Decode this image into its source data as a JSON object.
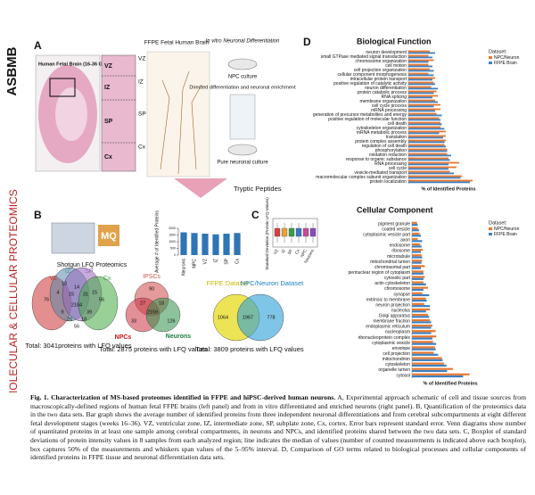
{
  "sidebar": {
    "logo": "ASBMB",
    "journal": "MOLECULAR & CELLULAR PROTEOMICS"
  },
  "panel_a": {
    "label": "A",
    "brain": "Human Fetal Brain (16-36 GW)",
    "zones": [
      "VZ",
      "IZ",
      "SP",
      "Cx"
    ],
    "ffpe": "FFPE Fetal Human Brain",
    "zones_right": [
      "VZ",
      "IZ",
      "SP",
      "Cx"
    ],
    "in_vitro": "In vitro Neuronal Differentiation",
    "npc": "NPC culture",
    "directed": "Directed differentiation and neuronal enrichment",
    "pure": "Pure neuronal culture",
    "peptides": "Tryptic Peptides"
  },
  "panel_b": {
    "label": "B",
    "logo": "MQ",
    "software": "Shotgun LFQ Proteomics",
    "venns": [
      {
        "sets": [
          "VZ",
          "IZ",
          "SP",
          "Cx"
        ],
        "numbers": [
          "76",
          "13",
          "14",
          "56",
          "4",
          "15",
          "31",
          "15",
          "2184",
          "9",
          "39",
          "26",
          "18",
          "56"
        ],
        "total": "Total: 3041proteins with LFQ values"
      },
      {
        "sets": [
          "IPSCs",
          "NPCs",
          "Neurons"
        ],
        "numbers": [
          "90",
          "27",
          "18",
          "33",
          "2159",
          "126"
        ],
        "total": "Total: 2875 proteins with LFQ values"
      },
      {
        "sets": [
          "FFPE Dataset",
          "NPC/Neuron Dataset"
        ],
        "numbers": [
          "1064",
          "1967",
          "778"
        ],
        "total": "Total: 3809 proteins with LFQ values"
      }
    ]
  },
  "panel_c": {
    "label": "C",
    "ylabel": "Standard Deviation (Protein LFQ Values)",
    "categories": [
      "VZ",
      "IZ",
      "SP",
      "Cx",
      "NPC",
      "Neurons"
    ]
  },
  "panel_d": {
    "label": "D"
  },
  "chart_data": [
    {
      "type": "bar",
      "orientation": "vertical",
      "ylabel": "Average # of Identified Proteins",
      "categories": [
        "Neurons",
        "NPC",
        "VZ",
        "IZ",
        "SP",
        "Cx"
      ],
      "values": [
        1700,
        1650,
        1600,
        1550,
        1600,
        1650
      ],
      "color": "#2e75b6",
      "ylim": [
        0,
        2000
      ],
      "yticks": [
        0,
        500,
        1000,
        1500,
        2000
      ]
    },
    {
      "type": "hbar",
      "title": "Biological Function",
      "xlabel": "% of Identified Proteins",
      "legend_title": "Dataset:",
      "categories": [
        "neuron development",
        "small GTPase mediated signal transduction",
        "chromosome organization",
        "cell motion",
        "cell projection organization",
        "cellular component morphogenesis",
        "intracellular protein transport",
        "positive regulation of catalytic activity",
        "neuron differentiation",
        "protein catabolic process",
        "RNA splicing",
        "membrane organization",
        "cell cycle process",
        "mRNA processing",
        "generation of precursor metabolites and energy",
        "positive regulation of molecular function",
        "cell death",
        "cytoskeleton organization",
        "mRNA metabolic process",
        "translation",
        "protein complex assembly",
        "regulation of cell death",
        "phosphorylation",
        "oxidation reduction",
        "response to organic substance",
        "RNA processing",
        "cell cycle",
        "vesicle-mediated transport",
        "macromolecular complex subunit organization",
        "protein localization"
      ],
      "series": [
        {
          "name": "NPC/Neuron",
          "color": "#e8772e",
          "values": [
            3.2,
            3.0,
            3.8,
            3.0,
            3.2,
            3.0,
            4.0,
            3.8,
            3.4,
            4.2,
            4.4,
            4.0,
            4.8,
            4.8,
            4.2,
            4.6,
            4.8,
            4.8,
            5.6,
            5.6,
            5.6,
            5.4,
            5.8,
            5.8,
            6.0,
            7.6,
            7.2,
            6.2,
            8.0,
            9.6
          ]
        },
        {
          "name": "FFPE Brain",
          "color": "#3f7fbf",
          "values": [
            4.0,
            3.6,
            3.0,
            3.6,
            3.8,
            3.8,
            3.6,
            4.0,
            4.4,
            3.8,
            3.6,
            4.4,
            3.8,
            4.0,
            5.0,
            4.8,
            5.0,
            5.4,
            4.6,
            5.2,
            5.4,
            5.6,
            5.8,
            6.4,
            6.2,
            6.0,
            6.0,
            6.8,
            7.8,
            9.2
          ]
        }
      ],
      "xlim": [
        0,
        12
      ]
    },
    {
      "type": "hbar",
      "title": "Cellular Component",
      "xlabel": "% of Identified Proteins",
      "legend_title": "Dataset:",
      "categories": [
        "pigment granule",
        "coated vesicle",
        "cytoplasmic vesicle part",
        "axon",
        "endosome",
        "ribosome",
        "microtubule",
        "mitochondrial lumen",
        "chromosomal part",
        "perinuclear region of cytoplasm",
        "cytosolic part",
        "actin cytoskeleton",
        "chromosome",
        "synapse",
        "extrinsic to membrane",
        "neuron projection",
        "nucleolus",
        "Golgi apparatus",
        "membrane fraction",
        "endoplasmic reticulum",
        "nucleoplasm",
        "ribonucleoprotein complex",
        "cytoplasmic vesicle",
        "envelope",
        "cell projection",
        "mitochondrion",
        "cytoskeleton",
        "organelle lumen",
        "cytosol"
      ],
      "series": [
        {
          "name": "NPC/Neuron",
          "color": "#e8772e",
          "values": [
            1.6,
            1.8,
            2.4,
            1.8,
            2.6,
            3.4,
            3.0,
            3.2,
            4.0,
            3.6,
            4.0,
            3.6,
            5.0,
            3.2,
            4.4,
            3.8,
            5.6,
            5.0,
            5.6,
            6.4,
            7.4,
            7.6,
            6.6,
            7.2,
            6.8,
            9.4,
            10.0,
            12.8,
            18.0
          ]
        },
        {
          "name": "FFPE Brain",
          "color": "#3f7fbf",
          "values": [
            1.8,
            2.2,
            2.8,
            3.2,
            3.0,
            2.8,
            3.2,
            3.0,
            2.8,
            3.6,
            3.6,
            4.4,
            3.6,
            5.4,
            4.6,
            5.6,
            4.4,
            5.4,
            6.0,
            6.0,
            6.0,
            6.4,
            7.6,
            7.4,
            8.2,
            9.6,
            10.8,
            11.0,
            16.0
          ]
        }
      ],
      "xlim": [
        0,
        24
      ]
    }
  ],
  "caption": {
    "label": "Fig. 1.",
    "title": "Characterization of MS-based proteomes identified in FFPE and hiPSC-derived human neurons.",
    "text": "A, Experimental approach schematic of cell and tissue sources from macroscopically-defined regions of human fetal FFPE brains (left panel) and from in vitro differentiated and enriched neurons (right panel). B, Quantification of the proteomics data in the two data sets. Bar graph shows the average number of identified proteins from three independent neuronal differentiations and from cerebral subcompartments at eight different fetal development stages (weeks 16–36). VZ, ventricular zone, IZ, intermediate zone, SP, subplate zone, Cx, cortex. Error bars represent standard error. Venn diagrams show number of quantitated proteins in at least one sample among cerebral compartments, in neurons and NPCs, and identified proteins shared between the two data sets. C, Boxplot of standard deviations of protein intensity values in 8 samples from each analyzed region; line indicates the median of values (number of counted measurements is indicated above each boxplot), box captures 50% of the measurements and whiskers span values of the 5–95% interval. D, Comparison of GO terms related to biological processes and cellular components of identified proteins in FFPE tissue and neuronal differentiation data sets."
  }
}
